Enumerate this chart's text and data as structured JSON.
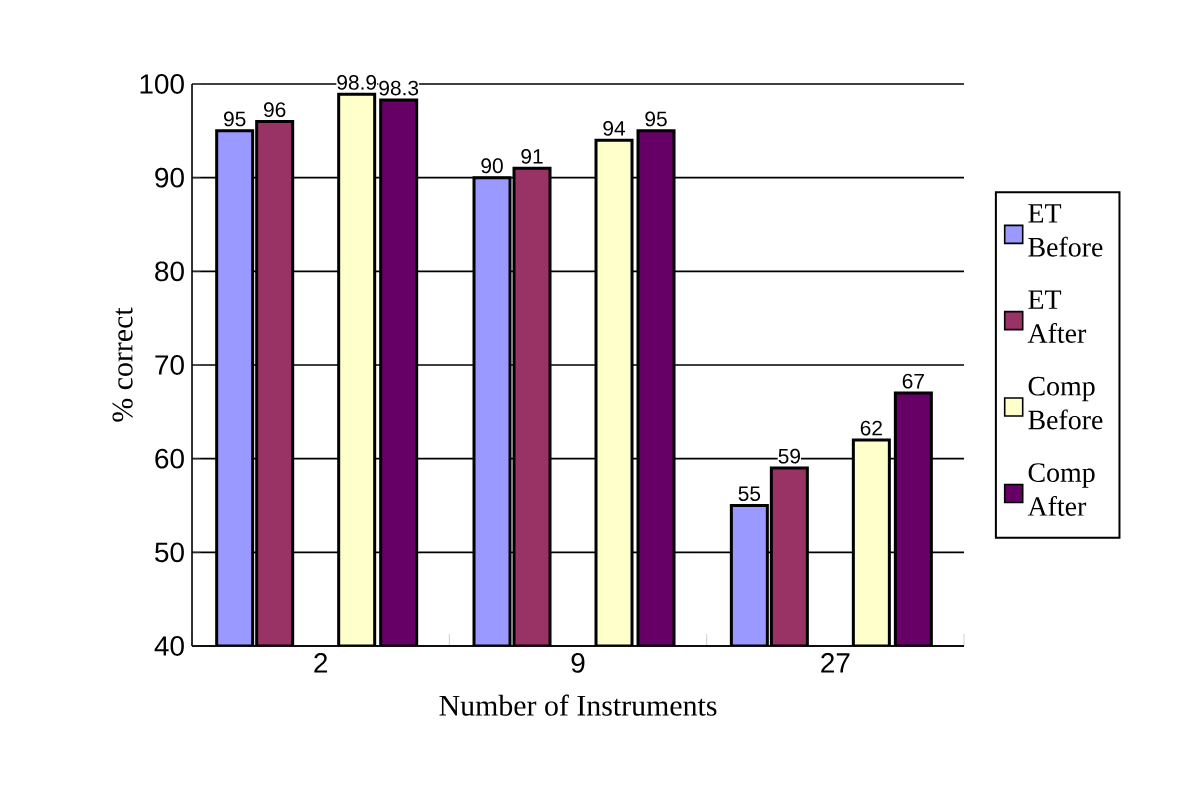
{
  "chart_data": {
    "type": "bar",
    "xlabel": "Number of Instruments",
    "ylabel": "% correct",
    "categories": [
      "2",
      "9",
      "27"
    ],
    "series": [
      {
        "name": "ET Before",
        "color": "#9999ff",
        "values": [
          95,
          90,
          55
        ]
      },
      {
        "name": "ET After",
        "color": "#993366",
        "values": [
          96,
          91,
          59
        ]
      },
      {
        "name": "Comp Before",
        "color": "#ffffcc",
        "values": [
          98.9,
          94,
          62
        ]
      },
      {
        "name": "Comp After",
        "color": "#660066",
        "values": [
          98.3,
          95,
          67
        ]
      }
    ],
    "ylim": [
      40,
      100
    ],
    "yticks": [
      40,
      50,
      60,
      70,
      80,
      90,
      100
    ],
    "grid": "y",
    "legend": "right",
    "data_labels": true
  }
}
